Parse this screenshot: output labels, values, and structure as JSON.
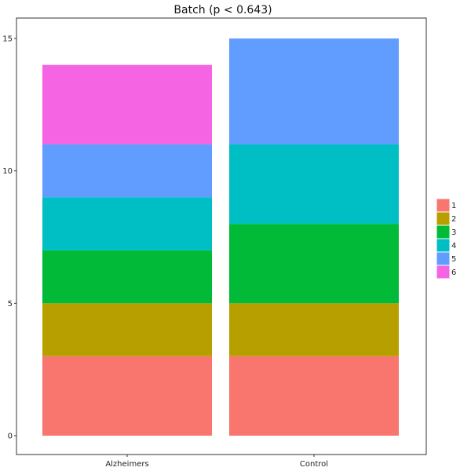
{
  "chart_data": {
    "type": "bar",
    "stacked": true,
    "title": "Batch (p < 0.643)",
    "xlabel": "",
    "ylabel": "",
    "categories": [
      "Alzheimers",
      "Control"
    ],
    "ylim": [
      0,
      15
    ],
    "yticks": [
      0,
      5,
      10,
      15
    ],
    "series": [
      {
        "name": "1",
        "color": "#F8766D",
        "values": [
          3,
          3
        ]
      },
      {
        "name": "2",
        "color": "#B79F00",
        "values": [
          2,
          2
        ]
      },
      {
        "name": "3",
        "color": "#00BA38",
        "values": [
          2,
          3
        ]
      },
      {
        "name": "4",
        "color": "#00BFC4",
        "values": [
          2,
          3
        ]
      },
      {
        "name": "5",
        "color": "#619CFF",
        "values": [
          2,
          4
        ]
      },
      {
        "name": "6",
        "color": "#F564E3",
        "values": [
          3,
          0
        ]
      }
    ],
    "grid": false,
    "legend_position": "right"
  }
}
